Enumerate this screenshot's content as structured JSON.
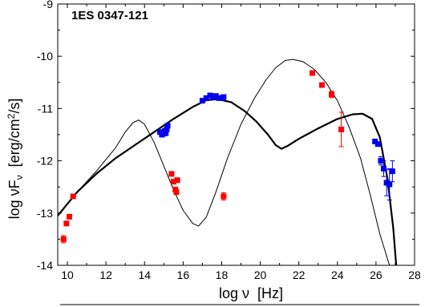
{
  "chart_data": {
    "type": "scatter",
    "title": "1ES 0347-121",
    "xlabel": "log ν  [Hz]",
    "ylabel": "log νFν [erg/cm²/s]",
    "ylabel_parts": {
      "pre": "log ",
      "nu1": "ν",
      "F": "F",
      "nu_sub": "ν",
      "unit_pre": "  [erg/cm",
      "unit_sup": "2",
      "unit_post": "/s]"
    },
    "xlim": [
      9.5,
      28
    ],
    "ylim": [
      -14,
      -9
    ],
    "xticks": [
      10,
      12,
      14,
      16,
      18,
      20,
      22,
      24,
      26,
      28
    ],
    "yticks": [
      -9,
      -10,
      -11,
      -12,
      -13,
      -14
    ],
    "xtick_labels": [
      "10",
      "12",
      "14",
      "16",
      "18",
      "20",
      "22",
      "24",
      "26",
      "28"
    ],
    "ytick_labels": [
      "-9",
      "-10",
      "-11",
      "-12",
      "-13",
      "-14"
    ],
    "grid": false,
    "series": [
      {
        "color": "#ff0000",
        "marker": "square",
        "points": [
          {
            "x": 9.8,
            "y": -13.5,
            "err": 0.07
          },
          {
            "x": 9.95,
            "y": -13.2,
            "err": 0
          },
          {
            "x": 10.1,
            "y": -13.07,
            "err": 0
          },
          {
            "x": 10.3,
            "y": -12.68,
            "err": 0
          },
          {
            "x": 15.4,
            "y": -12.25,
            "err": 0
          },
          {
            "x": 15.5,
            "y": -12.4,
            "err": 0
          },
          {
            "x": 15.6,
            "y": -12.55,
            "err": 0
          },
          {
            "x": 15.65,
            "y": -12.6,
            "err": 0
          },
          {
            "x": 15.7,
            "y": -12.37,
            "err": 0
          },
          {
            "x": 18.1,
            "y": -12.68,
            "err": 0.07
          },
          {
            "x": 22.7,
            "y": -10.32,
            "err": 0
          },
          {
            "x": 23.2,
            "y": -10.55,
            "err": 0
          },
          {
            "x": 23.7,
            "y": -10.73,
            "err": 0.06
          },
          {
            "x": 24.2,
            "y": -11.4,
            "err": 0.33
          }
        ]
      },
      {
        "color": "#0000ee",
        "marker": "square",
        "points": [
          {
            "x": 14.8,
            "y": -11.45,
            "err": 0
          },
          {
            "x": 14.9,
            "y": -11.5,
            "err": 0
          },
          {
            "x": 15.0,
            "y": -11.48,
            "err": 0
          },
          {
            "x": 15.05,
            "y": -11.43,
            "err": 0
          },
          {
            "x": 15.1,
            "y": -11.47,
            "err": 0
          },
          {
            "x": 15.15,
            "y": -11.4,
            "err": 0
          },
          {
            "x": 15.2,
            "y": -11.33,
            "err": 0
          },
          {
            "x": 17.0,
            "y": -10.85,
            "err": 0
          },
          {
            "x": 17.2,
            "y": -10.8,
            "err": 0
          },
          {
            "x": 17.4,
            "y": -10.75,
            "err": 0
          },
          {
            "x": 17.55,
            "y": -10.78,
            "err": 0
          },
          {
            "x": 17.7,
            "y": -10.76,
            "err": 0
          },
          {
            "x": 17.85,
            "y": -10.8,
            "err": 0
          },
          {
            "x": 18.0,
            "y": -10.8,
            "err": 0
          },
          {
            "x": 18.1,
            "y": -10.78,
            "err": 0
          },
          {
            "x": 25.95,
            "y": -11.63,
            "err": 0
          },
          {
            "x": 26.1,
            "y": -11.68,
            "err": 0
          },
          {
            "x": 26.25,
            "y": -12.0,
            "err": 0.08
          },
          {
            "x": 26.4,
            "y": -12.15,
            "err": 0.15
          },
          {
            "x": 26.55,
            "y": -12.42,
            "err": 0.25
          },
          {
            "x": 26.7,
            "y": -12.45,
            "err": 0.3
          },
          {
            "x": 26.85,
            "y": -12.2,
            "err": 0.2
          }
        ]
      }
    ],
    "curves": [
      {
        "style": "thin",
        "x": [
          9.5,
          10.5,
          11.5,
          12.5,
          13.0,
          13.4,
          13.7,
          14.0,
          14.5,
          15.0,
          15.5,
          16.0,
          16.5,
          16.8,
          17.2,
          17.7,
          18.3,
          19.0,
          19.7,
          20.3,
          20.8,
          21.3,
          21.7,
          22.2,
          22.8,
          23.4,
          24.0,
          24.6,
          25.2,
          25.7,
          26.2,
          26.7,
          27.0
        ],
        "y": [
          -13.05,
          -12.6,
          -12.2,
          -11.75,
          -11.45,
          -11.27,
          -11.22,
          -11.3,
          -11.65,
          -12.1,
          -12.55,
          -12.95,
          -13.2,
          -13.25,
          -13.08,
          -12.6,
          -11.95,
          -11.3,
          -10.8,
          -10.45,
          -10.22,
          -10.08,
          -10.06,
          -10.1,
          -10.25,
          -10.5,
          -10.85,
          -11.35,
          -11.95,
          -12.65,
          -13.4,
          -14.0,
          -14.0
        ]
      },
      {
        "style": "thick",
        "x": [
          9.5,
          10.5,
          11.5,
          12.5,
          13.5,
          14.5,
          15.5,
          16.5,
          17.2,
          17.8,
          18.5,
          19.2,
          19.8,
          20.4,
          20.8,
          21.1,
          21.4,
          22.0,
          23.0,
          24.0,
          24.8,
          25.3,
          25.8,
          26.2,
          26.6,
          26.9,
          27.05
        ],
        "y": [
          -13.05,
          -12.6,
          -12.25,
          -11.95,
          -11.7,
          -11.45,
          -11.2,
          -10.97,
          -10.84,
          -10.82,
          -10.88,
          -11.05,
          -11.25,
          -11.5,
          -11.7,
          -11.77,
          -11.72,
          -11.58,
          -11.38,
          -11.2,
          -11.11,
          -11.1,
          -11.2,
          -11.55,
          -12.35,
          -13.3,
          -14.0
        ]
      }
    ]
  }
}
